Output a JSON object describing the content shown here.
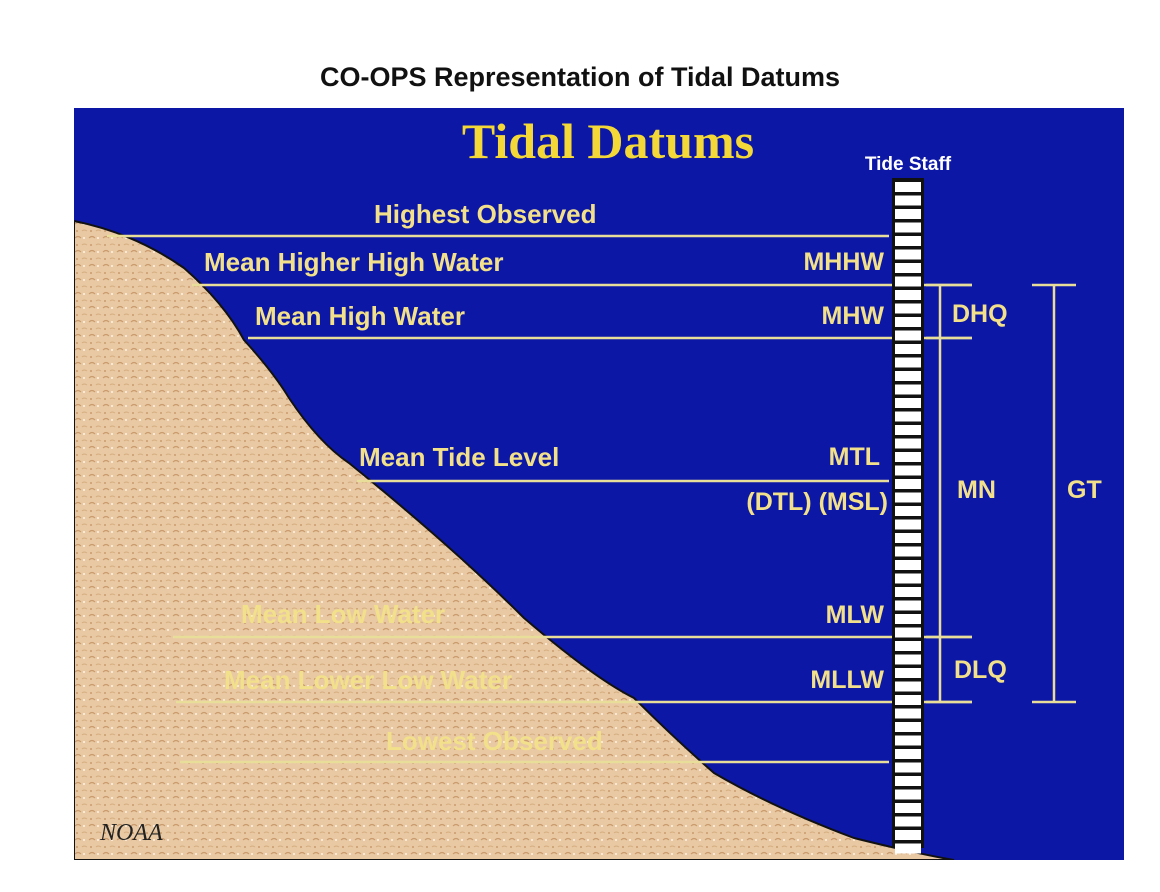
{
  "caption": "CO-OPS Representation of Tidal Datums",
  "diagram": {
    "title": "Tidal Datums",
    "staff_label": "Tide Staff",
    "credit": "NOAA",
    "levels": [
      {
        "label": "Highest Observed",
        "abbr": ""
      },
      {
        "label": "Mean Higher High Water",
        "abbr": "MHHW"
      },
      {
        "label": "Mean High Water",
        "abbr": "MHW"
      },
      {
        "label": "Mean Tide Level",
        "abbr": "MTL"
      },
      {
        "label": "",
        "abbr": "(DTL) (MSL)"
      },
      {
        "label": "Mean Low Water",
        "abbr": "MLW"
      },
      {
        "label": "Mean Lower Low Water",
        "abbr": "MLLW"
      },
      {
        "label": "Lowest Observed",
        "abbr": ""
      }
    ],
    "ranges": [
      {
        "label": "DHQ"
      },
      {
        "label": "MN"
      },
      {
        "label": "DLQ"
      },
      {
        "label": "GT"
      }
    ],
    "colors": {
      "water": "#0c17a6",
      "sand": "#e8c9a4",
      "text": "#f2e08a",
      "title": "#f3d837",
      "lines": "#e9dd9a"
    }
  }
}
